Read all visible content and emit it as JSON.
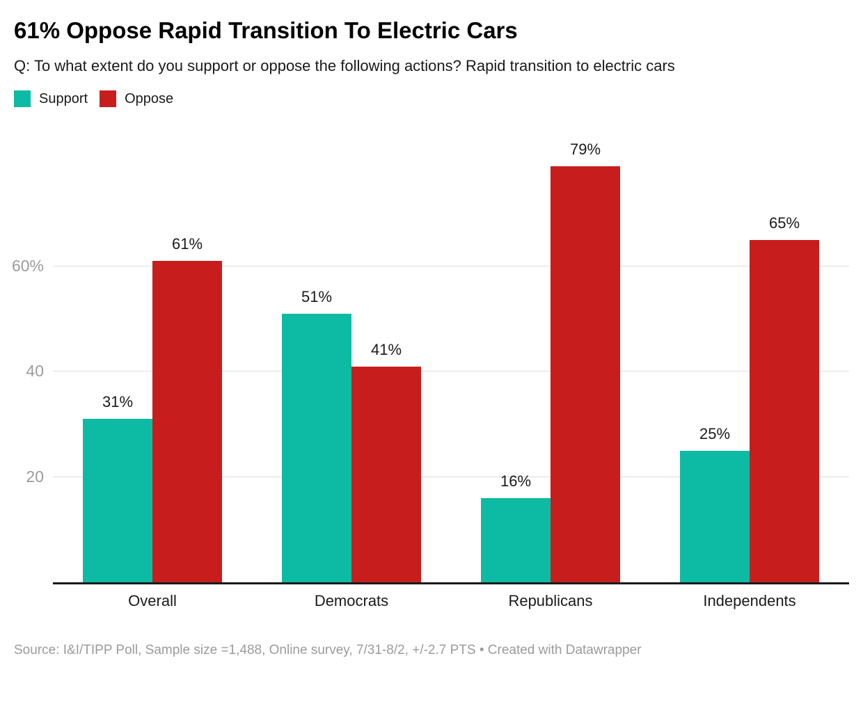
{
  "chart_data": {
    "type": "bar",
    "title": "61% Oppose Rapid Transition To Electric Cars",
    "subtitle": "Q: To what extent do you support or oppose the following actions? Rapid transition to electric cars",
    "categories": [
      "Overall",
      "Democrats",
      "Republicans",
      "Independents"
    ],
    "series": [
      {
        "name": "Support",
        "color": "#0dbba4",
        "values": [
          31,
          51,
          16,
          25
        ]
      },
      {
        "name": "Oppose",
        "color": "#c71e1d",
        "values": [
          61,
          41,
          79,
          65
        ]
      }
    ],
    "value_suffix": "%",
    "y_ticks": [
      {
        "value": 20,
        "label": "20"
      },
      {
        "value": 40,
        "label": "40"
      },
      {
        "value": 60,
        "label": "60%"
      }
    ],
    "ylim": [
      0,
      87
    ],
    "grid": true,
    "legend_position": "top-left",
    "source": "Source: I&I/TIPP Poll, Sample size =1,488, Online survey, 7/31-8/2, +/-2.7 PTS • Created with Datawrapper"
  },
  "colors": {
    "background": "#ffffff",
    "text": "#1a1a1a",
    "axis_line": "#1a1a1a",
    "gridline": "#dddddd",
    "tick_text": "#9b9b9b",
    "source_text": "#9b9b9b"
  }
}
